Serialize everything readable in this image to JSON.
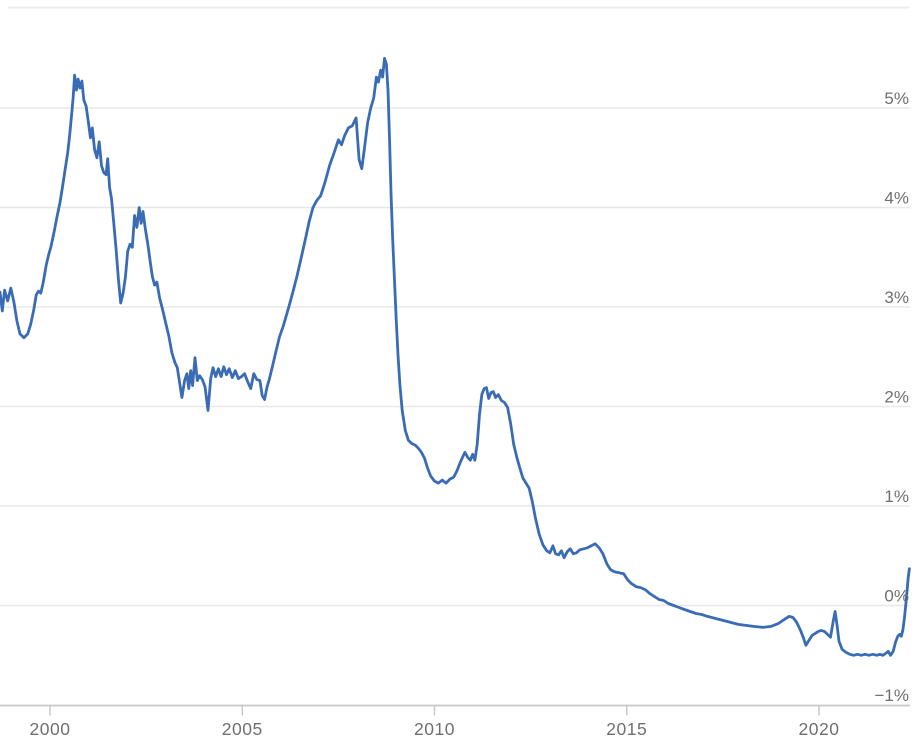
{
  "chart_data": {
    "type": "line",
    "title": "",
    "xlabel": "",
    "ylabel": "",
    "grid": true,
    "legend": "none",
    "y_axis": {
      "side": "right",
      "range": [
        -1,
        5.6
      ],
      "ticks": [
        {
          "value": 5,
          "label": "5%"
        },
        {
          "value": 4,
          "label": "4%"
        },
        {
          "value": 3,
          "label": "3%"
        },
        {
          "value": 2,
          "label": "2%"
        },
        {
          "value": 1,
          "label": "1%"
        },
        {
          "value": 0,
          "label": "0%"
        },
        {
          "value": -1,
          "label": "−1%"
        }
      ]
    },
    "x_axis": {
      "range": [
        1998.7,
        2022.45
      ],
      "ticks": [
        {
          "year": 2000,
          "label": "2000"
        },
        {
          "year": 2005,
          "label": "2005"
        },
        {
          "year": 2010,
          "label": "2010"
        },
        {
          "year": 2015,
          "label": "2015"
        },
        {
          "year": 2020,
          "label": "2020"
        }
      ]
    },
    "colors": {
      "line": "#3a6cb5",
      "gridline": "#e8e8e8",
      "axis_line": "#c8c8c8",
      "tick_mark": "#c8c8c8",
      "label_text": "#6f6f6f",
      "top_border": "#ededed",
      "background": "#ffffff"
    },
    "series": [
      {
        "name": "",
        "points": [
          [
            1998.7,
            3.15
          ],
          [
            1998.76,
            2.96
          ],
          [
            1998.82,
            3.17
          ],
          [
            1998.9,
            3.06
          ],
          [
            1998.98,
            3.19
          ],
          [
            1999.06,
            3.05
          ],
          [
            1999.14,
            2.86
          ],
          [
            1999.22,
            2.73
          ],
          [
            1999.32,
            2.69
          ],
          [
            1999.42,
            2.73
          ],
          [
            1999.5,
            2.83
          ],
          [
            1999.58,
            2.98
          ],
          [
            1999.64,
            3.12
          ],
          [
            1999.7,
            3.16
          ],
          [
            1999.76,
            3.14
          ],
          [
            1999.82,
            3.24
          ],
          [
            1999.9,
            3.42
          ],
          [
            1999.96,
            3.52
          ],
          [
            2000.02,
            3.6
          ],
          [
            2000.1,
            3.74
          ],
          [
            2000.18,
            3.9
          ],
          [
            2000.26,
            4.05
          ],
          [
            2000.33,
            4.22
          ],
          [
            2000.4,
            4.4
          ],
          [
            2000.46,
            4.55
          ],
          [
            2000.51,
            4.72
          ],
          [
            2000.56,
            4.92
          ],
          [
            2000.6,
            5.1
          ],
          [
            2000.64,
            5.33
          ],
          [
            2000.69,
            5.18
          ],
          [
            2000.73,
            5.29
          ],
          [
            2000.78,
            5.2
          ],
          [
            2000.83,
            5.27
          ],
          [
            2000.88,
            5.08
          ],
          [
            2000.94,
            5.02
          ],
          [
            2001.0,
            4.85
          ],
          [
            2001.05,
            4.7
          ],
          [
            2001.1,
            4.8
          ],
          [
            2001.16,
            4.58
          ],
          [
            2001.22,
            4.5
          ],
          [
            2001.28,
            4.66
          ],
          [
            2001.34,
            4.42
          ],
          [
            2001.4,
            4.35
          ],
          [
            2001.46,
            4.33
          ],
          [
            2001.5,
            4.49
          ],
          [
            2001.55,
            4.2
          ],
          [
            2001.6,
            4.09
          ],
          [
            2001.66,
            3.84
          ],
          [
            2001.72,
            3.58
          ],
          [
            2001.78,
            3.28
          ],
          [
            2001.84,
            3.04
          ],
          [
            2001.9,
            3.14
          ],
          [
            2001.96,
            3.3
          ],
          [
            2002.02,
            3.56
          ],
          [
            2002.08,
            3.63
          ],
          [
            2002.14,
            3.6
          ],
          [
            2002.2,
            3.92
          ],
          [
            2002.26,
            3.8
          ],
          [
            2002.32,
            4.0
          ],
          [
            2002.37,
            3.84
          ],
          [
            2002.42,
            3.96
          ],
          [
            2002.48,
            3.78
          ],
          [
            2002.54,
            3.64
          ],
          [
            2002.6,
            3.47
          ],
          [
            2002.66,
            3.31
          ],
          [
            2002.72,
            3.22
          ],
          [
            2002.78,
            3.25
          ],
          [
            2002.85,
            3.09
          ],
          [
            2002.93,
            2.97
          ],
          [
            2003.01,
            2.84
          ],
          [
            2003.09,
            2.71
          ],
          [
            2003.17,
            2.54
          ],
          [
            2003.25,
            2.44
          ],
          [
            2003.31,
            2.39
          ],
          [
            2003.37,
            2.24
          ],
          [
            2003.43,
            2.09
          ],
          [
            2003.5,
            2.26
          ],
          [
            2003.56,
            2.33
          ],
          [
            2003.61,
            2.18
          ],
          [
            2003.66,
            2.36
          ],
          [
            2003.71,
            2.21
          ],
          [
            2003.77,
            2.49
          ],
          [
            2003.83,
            2.26
          ],
          [
            2003.89,
            2.31
          ],
          [
            2003.96,
            2.27
          ],
          [
            2004.03,
            2.2
          ],
          [
            2004.11,
            1.96
          ],
          [
            2004.18,
            2.28
          ],
          [
            2004.24,
            2.39
          ],
          [
            2004.31,
            2.3
          ],
          [
            2004.38,
            2.38
          ],
          [
            2004.45,
            2.3
          ],
          [
            2004.52,
            2.4
          ],
          [
            2004.59,
            2.32
          ],
          [
            2004.66,
            2.38
          ],
          [
            2004.74,
            2.29
          ],
          [
            2004.82,
            2.36
          ],
          [
            2004.9,
            2.28
          ],
          [
            2004.98,
            2.3
          ],
          [
            2005.06,
            2.33
          ],
          [
            2005.14,
            2.25
          ],
          [
            2005.22,
            2.18
          ],
          [
            2005.3,
            2.33
          ],
          [
            2005.38,
            2.27
          ],
          [
            2005.46,
            2.26
          ],
          [
            2005.52,
            2.11
          ],
          [
            2005.58,
            2.07
          ],
          [
            2005.64,
            2.19
          ],
          [
            2005.71,
            2.28
          ],
          [
            2005.79,
            2.41
          ],
          [
            2005.88,
            2.56
          ],
          [
            2005.97,
            2.7
          ],
          [
            2006.06,
            2.8
          ],
          [
            2006.15,
            2.92
          ],
          [
            2006.24,
            3.04
          ],
          [
            2006.33,
            3.17
          ],
          [
            2006.43,
            3.32
          ],
          [
            2006.53,
            3.49
          ],
          [
            2006.63,
            3.66
          ],
          [
            2006.74,
            3.86
          ],
          [
            2006.84,
            4.0
          ],
          [
            2006.94,
            4.07
          ],
          [
            2007.04,
            4.12
          ],
          [
            2007.15,
            4.25
          ],
          [
            2007.27,
            4.42
          ],
          [
            2007.39,
            4.55
          ],
          [
            2007.5,
            4.68
          ],
          [
            2007.58,
            4.63
          ],
          [
            2007.66,
            4.72
          ],
          [
            2007.76,
            4.8
          ],
          [
            2007.86,
            4.82
          ],
          [
            2007.96,
            4.9
          ],
          [
            2008.04,
            4.48
          ],
          [
            2008.11,
            4.39
          ],
          [
            2008.18,
            4.6
          ],
          [
            2008.26,
            4.85
          ],
          [
            2008.34,
            5.0
          ],
          [
            2008.42,
            5.1
          ],
          [
            2008.49,
            5.31
          ],
          [
            2008.54,
            5.26
          ],
          [
            2008.6,
            5.38
          ],
          [
            2008.65,
            5.31
          ],
          [
            2008.7,
            5.5
          ],
          [
            2008.75,
            5.44
          ],
          [
            2008.79,
            5.18
          ],
          [
            2008.83,
            4.7
          ],
          [
            2008.87,
            4.12
          ],
          [
            2008.91,
            3.7
          ],
          [
            2008.95,
            3.36
          ],
          [
            2009.0,
            2.9
          ],
          [
            2009.05,
            2.52
          ],
          [
            2009.1,
            2.22
          ],
          [
            2009.16,
            1.96
          ],
          [
            2009.24,
            1.76
          ],
          [
            2009.32,
            1.66
          ],
          [
            2009.4,
            1.63
          ],
          [
            2009.5,
            1.61
          ],
          [
            2009.58,
            1.58
          ],
          [
            2009.66,
            1.54
          ],
          [
            2009.74,
            1.48
          ],
          [
            2009.82,
            1.38
          ],
          [
            2009.9,
            1.3
          ],
          [
            2010.0,
            1.25
          ],
          [
            2010.1,
            1.23
          ],
          [
            2010.2,
            1.26
          ],
          [
            2010.3,
            1.23
          ],
          [
            2010.4,
            1.27
          ],
          [
            2010.5,
            1.29
          ],
          [
            2010.58,
            1.35
          ],
          [
            2010.66,
            1.43
          ],
          [
            2010.73,
            1.49
          ],
          [
            2010.79,
            1.54
          ],
          [
            2010.86,
            1.49
          ],
          [
            2010.93,
            1.46
          ],
          [
            2010.99,
            1.52
          ],
          [
            2011.05,
            1.46
          ],
          [
            2011.11,
            1.62
          ],
          [
            2011.17,
            1.92
          ],
          [
            2011.23,
            2.12
          ],
          [
            2011.29,
            2.18
          ],
          [
            2011.35,
            2.19
          ],
          [
            2011.41,
            2.08
          ],
          [
            2011.47,
            2.14
          ],
          [
            2011.53,
            2.15
          ],
          [
            2011.59,
            2.09
          ],
          [
            2011.66,
            2.12
          ],
          [
            2011.74,
            2.06
          ],
          [
            2011.82,
            2.04
          ],
          [
            2011.9,
            1.99
          ],
          [
            2011.98,
            1.83
          ],
          [
            2012.06,
            1.62
          ],
          [
            2012.14,
            1.49
          ],
          [
            2012.22,
            1.38
          ],
          [
            2012.3,
            1.28
          ],
          [
            2012.38,
            1.23
          ],
          [
            2012.46,
            1.18
          ],
          [
            2012.54,
            1.05
          ],
          [
            2012.62,
            0.89
          ],
          [
            2012.72,
            0.72
          ],
          [
            2012.82,
            0.61
          ],
          [
            2012.92,
            0.55
          ],
          [
            2013.0,
            0.53
          ],
          [
            2013.08,
            0.6
          ],
          [
            2013.15,
            0.52
          ],
          [
            2013.23,
            0.51
          ],
          [
            2013.3,
            0.55
          ],
          [
            2013.37,
            0.48
          ],
          [
            2013.45,
            0.54
          ],
          [
            2013.53,
            0.57
          ],
          [
            2013.61,
            0.52
          ],
          [
            2013.69,
            0.53
          ],
          [
            2013.78,
            0.56
          ],
          [
            2013.88,
            0.57
          ],
          [
            2013.98,
            0.58
          ],
          [
            2014.08,
            0.6
          ],
          [
            2014.18,
            0.62
          ],
          [
            2014.28,
            0.58
          ],
          [
            2014.38,
            0.52
          ],
          [
            2014.48,
            0.42
          ],
          [
            2014.58,
            0.36
          ],
          [
            2014.68,
            0.34
          ],
          [
            2014.8,
            0.33
          ],
          [
            2014.92,
            0.32
          ],
          [
            2015.02,
            0.26
          ],
          [
            2015.12,
            0.22
          ],
          [
            2015.24,
            0.19
          ],
          [
            2015.36,
            0.18
          ],
          [
            2015.48,
            0.16
          ],
          [
            2015.6,
            0.12
          ],
          [
            2015.72,
            0.09
          ],
          [
            2015.84,
            0.06
          ],
          [
            2015.96,
            0.05
          ],
          [
            2016.08,
            0.02
          ],
          [
            2016.22,
            0.0
          ],
          [
            2016.36,
            -0.02
          ],
          [
            2016.5,
            -0.04
          ],
          [
            2016.65,
            -0.06
          ],
          [
            2016.8,
            -0.08
          ],
          [
            2016.95,
            -0.09
          ],
          [
            2017.1,
            -0.11
          ],
          [
            2017.3,
            -0.13
          ],
          [
            2017.5,
            -0.15
          ],
          [
            2017.7,
            -0.17
          ],
          [
            2017.9,
            -0.19
          ],
          [
            2018.1,
            -0.2
          ],
          [
            2018.3,
            -0.21
          ],
          [
            2018.55,
            -0.22
          ],
          [
            2018.75,
            -0.21
          ],
          [
            2018.95,
            -0.18
          ],
          [
            2019.1,
            -0.14
          ],
          [
            2019.22,
            -0.11
          ],
          [
            2019.32,
            -0.12
          ],
          [
            2019.42,
            -0.17
          ],
          [
            2019.52,
            -0.25
          ],
          [
            2019.6,
            -0.33
          ],
          [
            2019.66,
            -0.4
          ],
          [
            2019.74,
            -0.35
          ],
          [
            2019.82,
            -0.3
          ],
          [
            2019.9,
            -0.28
          ],
          [
            2019.98,
            -0.26
          ],
          [
            2020.06,
            -0.25
          ],
          [
            2020.14,
            -0.26
          ],
          [
            2020.22,
            -0.29
          ],
          [
            2020.3,
            -0.32
          ],
          [
            2020.37,
            -0.16
          ],
          [
            2020.42,
            -0.06
          ],
          [
            2020.47,
            -0.2
          ],
          [
            2020.52,
            -0.36
          ],
          [
            2020.6,
            -0.44
          ],
          [
            2020.7,
            -0.47
          ],
          [
            2020.8,
            -0.49
          ],
          [
            2020.9,
            -0.5
          ],
          [
            2021.0,
            -0.49
          ],
          [
            2021.1,
            -0.5
          ],
          [
            2021.2,
            -0.49
          ],
          [
            2021.3,
            -0.5
          ],
          [
            2021.4,
            -0.49
          ],
          [
            2021.5,
            -0.5
          ],
          [
            2021.58,
            -0.49
          ],
          [
            2021.66,
            -0.5
          ],
          [
            2021.74,
            -0.48
          ],
          [
            2021.8,
            -0.46
          ],
          [
            2021.86,
            -0.5
          ],
          [
            2021.93,
            -0.46
          ],
          [
            2021.99,
            -0.37
          ],
          [
            2022.05,
            -0.31
          ],
          [
            2022.1,
            -0.29
          ],
          [
            2022.14,
            -0.31
          ],
          [
            2022.18,
            -0.25
          ],
          [
            2022.22,
            -0.13
          ],
          [
            2022.26,
            0.02
          ],
          [
            2022.29,
            0.15
          ],
          [
            2022.32,
            0.28
          ],
          [
            2022.35,
            0.37
          ]
        ]
      }
    ]
  }
}
